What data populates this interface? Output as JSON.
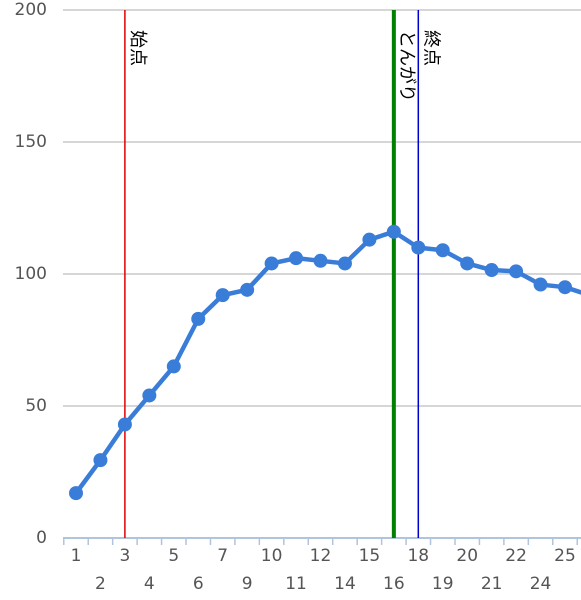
{
  "chart_data": {
    "type": "line",
    "categories": [
      "1",
      "2",
      "3",
      "4",
      "5",
      "6",
      "7",
      "9",
      "10",
      "11",
      "12",
      "14",
      "15",
      "16",
      "18",
      "19",
      "20",
      "21",
      "22",
      "24",
      "25",
      null
    ],
    "series": [
      {
        "color": "#3a7dd8",
        "values": [
          17,
          29.5,
          43,
          54,
          65,
          83,
          92,
          94,
          104,
          106,
          105,
          104,
          113,
          116,
          110,
          109,
          104,
          101.5,
          101,
          96,
          95,
          92
        ]
      }
    ],
    "ylim": [
      0,
      200
    ],
    "yticks": [
      0,
      50,
      100,
      150,
      200
    ],
    "grid": true,
    "annotations": [
      {
        "text": "始点",
        "category": "3",
        "color": "#e00000"
      },
      {
        "text": "とんがり",
        "category": "16",
        "color": "#008000"
      },
      {
        "text": "終点",
        "category": "18",
        "color": "#0000cc"
      }
    ]
  }
}
